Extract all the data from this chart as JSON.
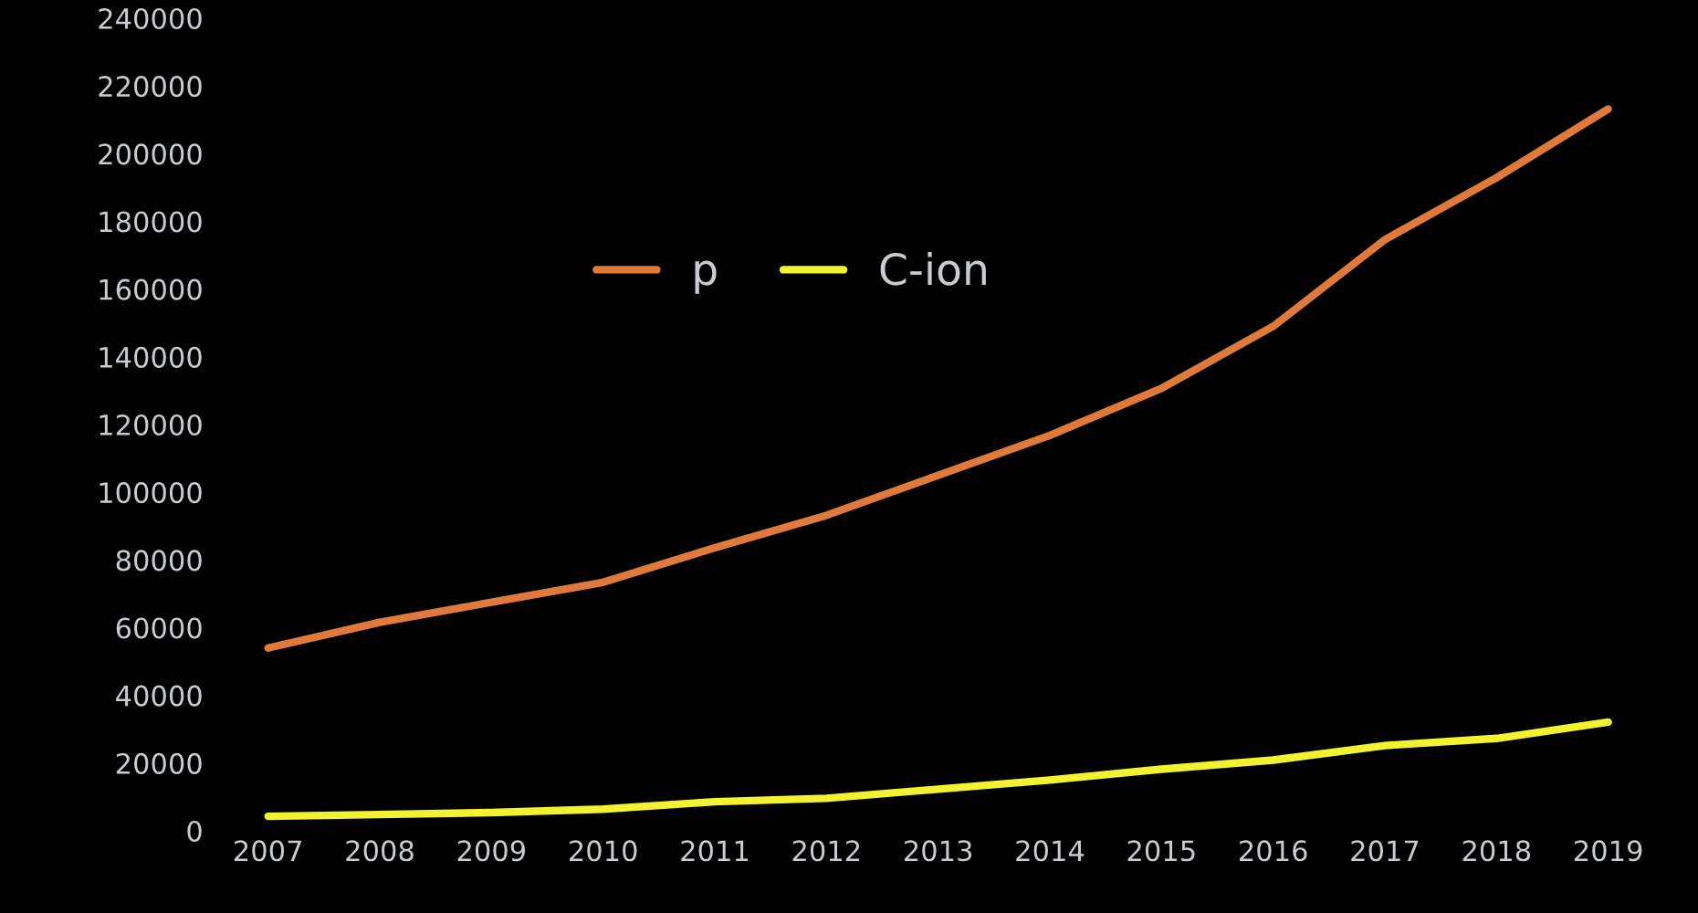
{
  "chart_data": {
    "type": "line",
    "categories": [
      "2007",
      "2008",
      "2009",
      "2010",
      "2011",
      "2012",
      "2013",
      "2014",
      "2015",
      "2016",
      "2017",
      "2018",
      "2019"
    ],
    "series": [
      {
        "name": "p",
        "color": "#e07a3c",
        "values": [
          54000,
          61600,
          67500,
          73400,
          83600,
          93200,
          105000,
          116800,
          130700,
          149000,
          174600,
          192900,
          213200
        ]
      },
      {
        "name": "C-ion",
        "color": "#f2f230",
        "values": [
          4300,
          4800,
          5400,
          6400,
          8600,
          9600,
          12300,
          15000,
          18200,
          20900,
          25200,
          27300,
          32100
        ]
      }
    ],
    "ylim": [
      0,
      240000
    ],
    "yticks": [
      0,
      20000,
      40000,
      60000,
      80000,
      100000,
      120000,
      140000,
      160000,
      180000,
      200000,
      220000,
      240000
    ],
    "grid": false,
    "legend": "top",
    "marker": "none",
    "line_style": "solid"
  }
}
